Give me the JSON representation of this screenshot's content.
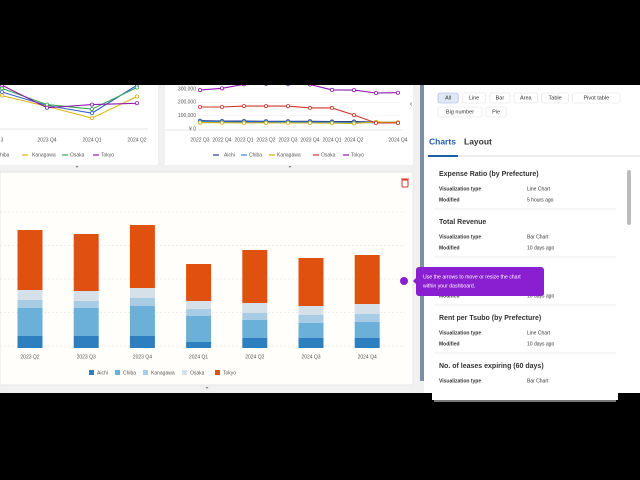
{
  "filters": [
    "All",
    "Line",
    "Bar",
    "Area",
    "Table",
    "Pivot table",
    "Big number",
    "Pie"
  ],
  "tabs": [
    "Charts",
    "Layout"
  ],
  "chart_list": [
    {
      "title": "Expense Ratio (by Prefecture)",
      "type_label": "Visualization type",
      "type": "Line Chart",
      "modified_label": "Modified",
      "modified": "5 hours ago"
    },
    {
      "title": "Total Revenue",
      "type_label": "Visualization type",
      "type": "Bar Chart",
      "modified_label": "Modified",
      "modified": "10 days ago"
    },
    {
      "modified_label": "Modified",
      "modified": "10 days ago"
    },
    {
      "title": "Rent per Tsubo (by Prefecture)",
      "type_label": "Visualization type",
      "type": "Line Chart",
      "modified_label": "Modified",
      "modified": "10 days ago"
    },
    {
      "title": "No. of leases expiring (60 days)",
      "type_label": "Visualization type",
      "type": "Bar Chart"
    }
  ],
  "tooltip": [
    "Use the arrows to move or resize the chart",
    "within your dashboard."
  ],
  "chart_data": [
    {
      "type": "line",
      "categories": [
        "3",
        "2023 Q4",
        "2024 Q1",
        "2024 Q2"
      ],
      "ylim": [
        0,
        100
      ],
      "series": [
        {
          "name": "hiba",
          "color": "#3a5fcd",
          "values": [
            80,
            50,
            33,
            95
          ]
        },
        {
          "name": "Kanagawa",
          "color": "#d9b40c",
          "values": [
            72,
            48,
            22,
            70
          ]
        },
        {
          "name": "Osaka",
          "color": "#3aa655",
          "values": [
            88,
            52,
            42,
            90
          ]
        },
        {
          "name": "Tokyo",
          "color": "#8e1bb0",
          "values": [
            95,
            45,
            52,
            55
          ]
        }
      ]
    },
    {
      "type": "line",
      "categories": [
        "2022 Q3",
        "2022 Q4",
        "2023 Q1",
        "2023 Q2",
        "2023 Q3",
        "2023 Q4",
        "2024 Q1",
        "2024 Q2",
        null,
        "2024 Q4"
      ],
      "ylim": [
        0,
        300000
      ],
      "yticks": [
        {
          "value": 0,
          "label": "¥ 0"
        },
        {
          "value": 100000,
          "label": "100,000"
        },
        {
          "value": 200000,
          "label": "200,000"
        },
        {
          "value": 300000,
          "label": "300,000"
        }
      ],
      "series": [
        {
          "name": "Aichi",
          "color": "#2d3a8c",
          "values": [
            62000,
            60000,
            60000,
            58000,
            58000,
            58000,
            56000,
            56000,
            52000,
            50000
          ]
        },
        {
          "name": "Chiba",
          "color": "#2e86de",
          "values": [
            55000,
            53000,
            52000,
            52000,
            52000,
            50000,
            50000,
            48000,
            47000,
            47000
          ]
        },
        {
          "name": "Kanagawa",
          "color": "#c9b20c",
          "values": [
            48000,
            47000,
            46000,
            46000,
            46000,
            45000,
            44000,
            42000,
            53000,
            50000
          ]
        },
        {
          "name": "Osaka",
          "color": "#d0352b",
          "values": [
            165000,
            165000,
            172000,
            172000,
            172000,
            158000,
            158000,
            105000,
            45000,
            45000
          ]
        },
        {
          "name": "Tokyo",
          "color": "#8e1bb0",
          "values": [
            292000,
            305000,
            335000,
            338000,
            336000,
            334000,
            293000,
            292000,
            270000,
            272000
          ]
        }
      ]
    },
    {
      "type": "stacked_bar",
      "categories": [
        "2023 Q2",
        "2023 Q3",
        "2023 Q4",
        "2024 Q1",
        "2024 Q2",
        "2024 Q3",
        "2024 Q4"
      ],
      "ylim": [
        0,
        140
      ],
      "grid": true,
      "series": [
        {
          "name": "Aichi",
          "color": "#2e7fbf",
          "values": [
            12,
            12,
            12,
            6,
            10,
            10,
            10
          ]
        },
        {
          "name": "Chiba",
          "color": "#6ab0d8",
          "values": [
            28,
            28,
            30,
            26,
            18,
            15,
            16
          ]
        },
        {
          "name": "Kanagawa",
          "color": "#a8cce4",
          "values": [
            8,
            7,
            8,
            7,
            7,
            8,
            8
          ]
        },
        {
          "name": "Osaka",
          "color": "#d6e0e8",
          "values": [
            10,
            10,
            10,
            8,
            10,
            9,
            10
          ]
        },
        {
          "name": "Tokyo",
          "color": "#e0500f",
          "values": [
            60,
            57,
            63,
            37,
            53,
            48,
            49
          ]
        }
      ]
    }
  ]
}
